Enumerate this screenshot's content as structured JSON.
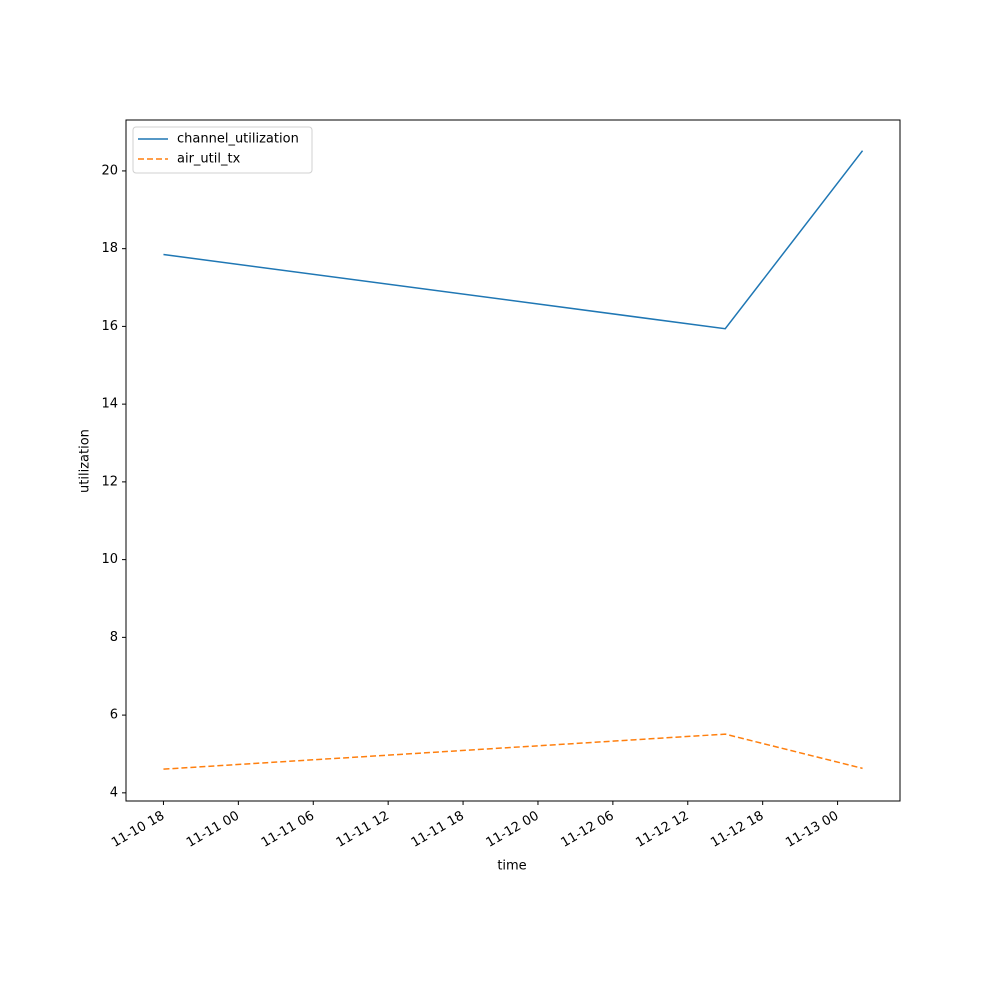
{
  "chart_data": {
    "type": "line",
    "x_label": "time",
    "y_label": "utilization",
    "x": [
      "11-10 18",
      "11-12 15",
      "11-13 02"
    ],
    "series": [
      {
        "name": "channel_utilization",
        "color": "#1f77b4",
        "linestyle": "solid",
        "values": [
          17.85,
          15.94,
          20.52
        ]
      },
      {
        "name": "air_util_tx",
        "color": "#ff7f0e",
        "linestyle": "dashed",
        "values": [
          4.61,
          5.51,
          4.63
        ]
      }
    ],
    "xlim": [
      "11-10 15",
      "11-13 05"
    ],
    "xticks": [
      "11-10 18",
      "11-11 00",
      "11-11 06",
      "11-11 12",
      "11-11 18",
      "11-12 00",
      "11-12 06",
      "11-12 12",
      "11-12 18",
      "11-13 00"
    ],
    "ylim": [
      3.79,
      21.31
    ],
    "yticks": [
      4,
      6,
      8,
      10,
      12,
      14,
      16,
      18,
      20
    ],
    "grid": false,
    "legend": "upper left"
  }
}
